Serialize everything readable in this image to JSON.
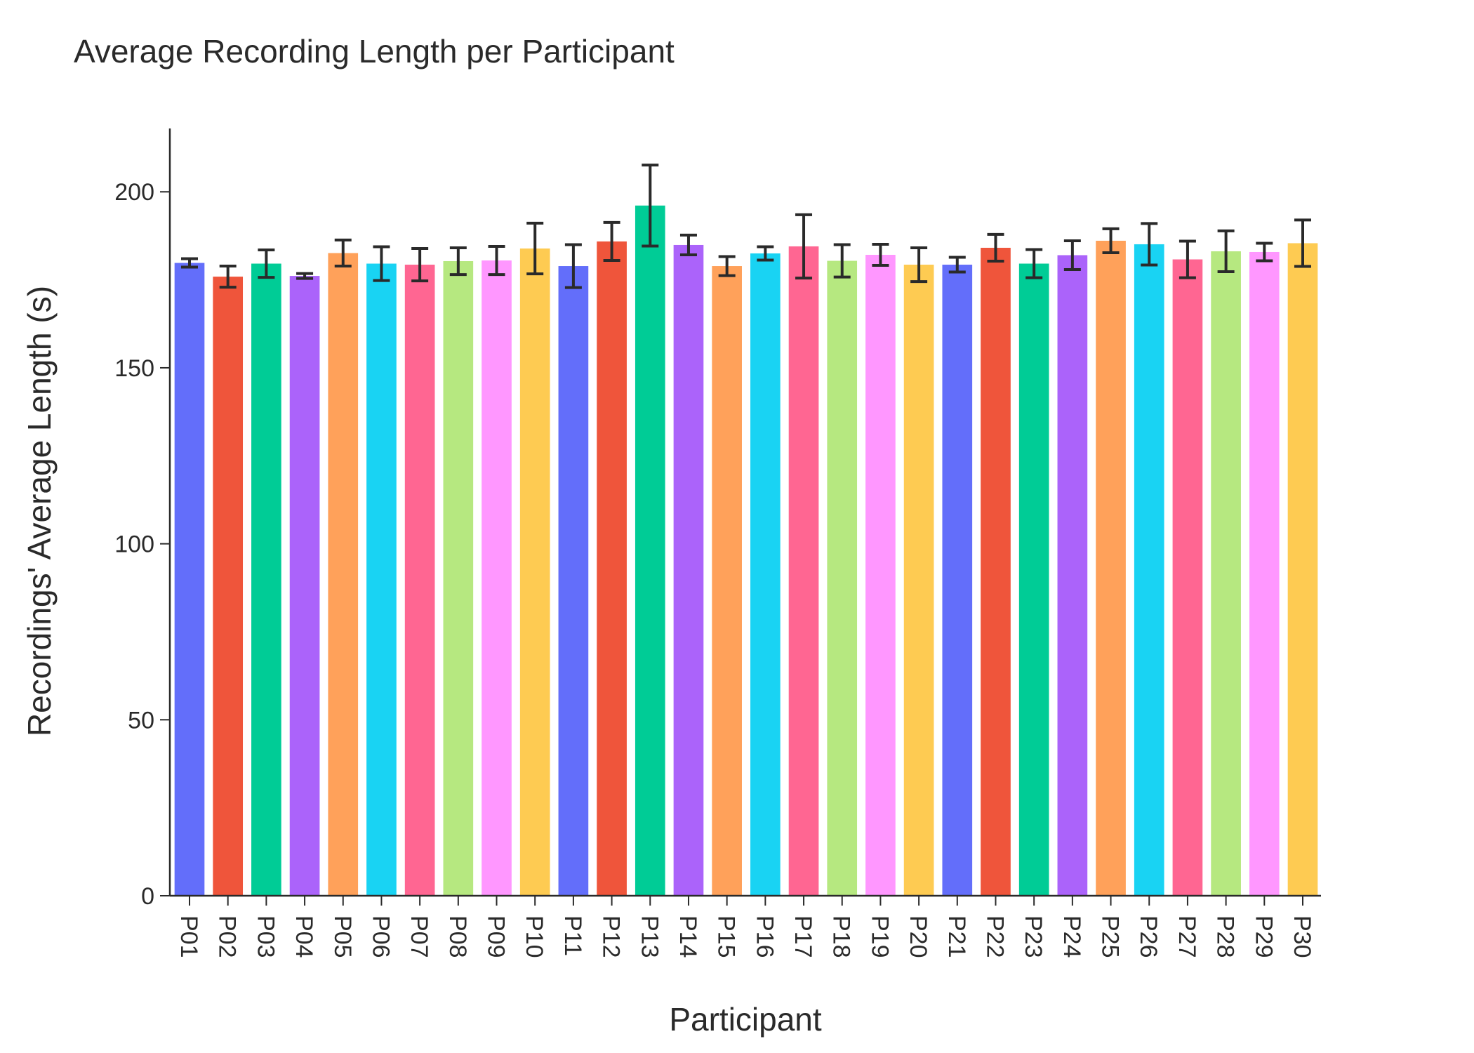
{
  "chart_data": {
    "type": "bar",
    "title": "Average Recording Length per Participant",
    "xlabel": "Participant",
    "ylabel": "Recordings' Average Length (s)",
    "ylim": [
      0,
      218
    ],
    "yticks": [
      0,
      50,
      100,
      150,
      200
    ],
    "grid": false,
    "legend": "none",
    "categories": [
      "P01",
      "P02",
      "P03",
      "P04",
      "P05",
      "P06",
      "P07",
      "P08",
      "P09",
      "P10",
      "P11",
      "P12",
      "P13",
      "P14",
      "P15",
      "P16",
      "P17",
      "P18",
      "P19",
      "P20",
      "P21",
      "P22",
      "P23",
      "P24",
      "P25",
      "P26",
      "P27",
      "P28",
      "P29",
      "P30"
    ],
    "values": [
      179.8,
      175.9,
      179.6,
      176.1,
      182.6,
      179.6,
      179.3,
      180.3,
      180.5,
      183.9,
      178.9,
      185.9,
      196.1,
      184.9,
      178.9,
      182.5,
      184.5,
      180.4,
      182.1,
      179.3,
      179.3,
      184.1,
      179.6,
      182.0,
      186.1,
      185.1,
      180.8,
      183.1,
      182.9,
      185.4
    ],
    "errors": [
      1.2,
      3.0,
      3.9,
      0.7,
      3.7,
      4.8,
      4.6,
      3.8,
      4.0,
      7.2,
      6.1,
      5.4,
      11.5,
      2.8,
      2.7,
      1.9,
      9.0,
      4.6,
      3.0,
      4.8,
      2.1,
      3.8,
      4.0,
      4.1,
      3.4,
      5.9,
      5.2,
      5.8,
      2.5,
      6.6
    ],
    "colors": [
      "#636efa",
      "#ef553b",
      "#00cc96",
      "#ab63fa",
      "#ffa15a",
      "#19d3f3",
      "#ff6692",
      "#b6e880",
      "#ff97ff",
      "#fecb52"
    ]
  }
}
